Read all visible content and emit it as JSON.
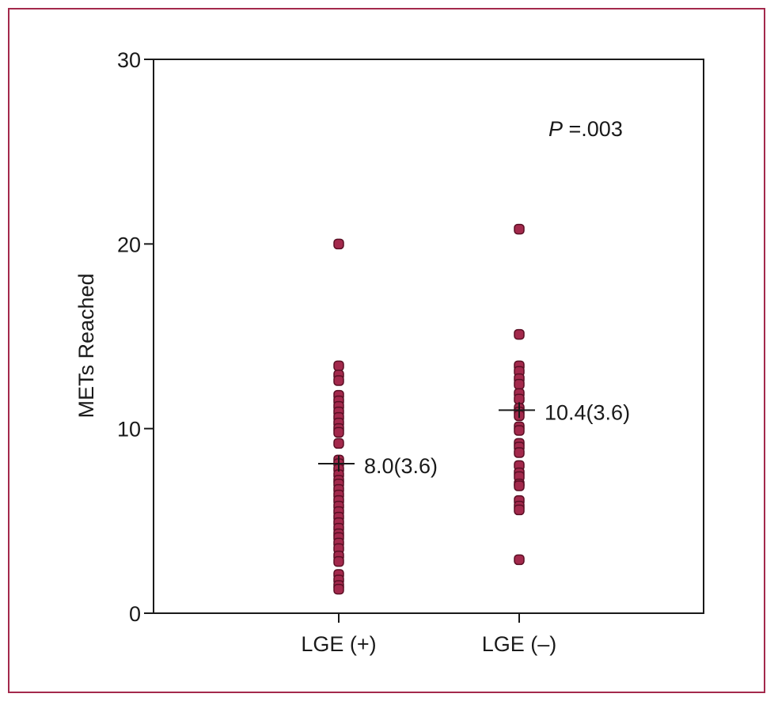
{
  "chart_data": {
    "type": "scatter",
    "ylabel": "METs Reached",
    "xlabel": "",
    "ylim": [
      0,
      30
    ],
    "yticks": [
      0,
      10,
      20,
      30
    ],
    "grid": false,
    "categories": [
      "LGE (+)",
      "LGE (–)"
    ],
    "series": [
      {
        "category": "LGE (+)",
        "values": [
          20.0,
          13.4,
          12.9,
          12.6,
          11.8,
          11.5,
          11.2,
          10.9,
          10.6,
          10.3,
          10.0,
          9.8,
          9.2,
          8.3,
          8.1,
          7.8,
          7.5,
          7.2,
          7.0,
          6.7,
          6.4,
          6.1,
          5.8,
          5.5,
          5.2,
          4.9,
          4.6,
          4.3,
          4.1,
          3.8,
          3.5,
          3.1,
          2.8,
          2.1,
          1.8,
          1.5,
          1.3
        ],
        "mean": 8.0,
        "sd": 3.6,
        "marker_y": 8.1,
        "annotation": "8.0(3.6)"
      },
      {
        "category": "LGE (–)",
        "values": [
          20.8,
          15.1,
          13.4,
          13.1,
          12.7,
          12.4,
          11.9,
          11.6,
          11.1,
          10.9,
          10.7,
          10.1,
          9.9,
          9.2,
          9.0,
          8.7,
          8.0,
          7.6,
          7.4,
          7.0,
          6.9,
          6.1,
          5.8,
          5.6,
          2.9
        ],
        "mean": 10.4,
        "sd": 3.6,
        "marker_y": 11.0,
        "annotation": "10.4(3.6)"
      }
    ],
    "p_value_label": "P",
    "p_value_text": " =.003",
    "marker_color": "#a3294c",
    "marker_edge_color": "#5a0f24"
  }
}
